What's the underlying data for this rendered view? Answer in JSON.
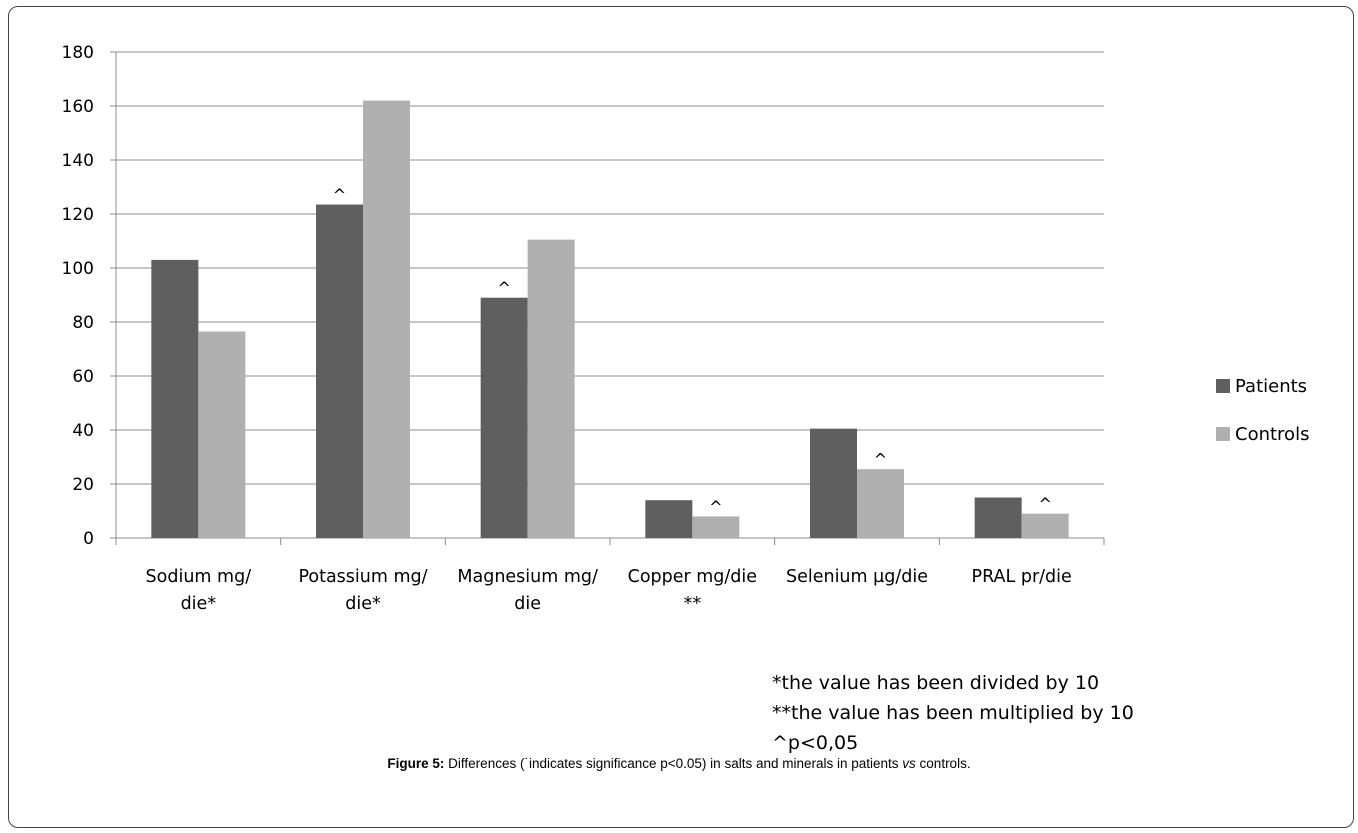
{
  "chart_data": {
    "type": "bar",
    "categories": [
      [
        "Sodium mg/",
        "die*"
      ],
      [
        "Potassium mg/",
        "die*"
      ],
      [
        "Magnesium mg/",
        "die"
      ],
      [
        "Copper mg/die",
        "**"
      ],
      [
        "Selenium µg/die"
      ],
      [
        "PRAL pr/die"
      ]
    ],
    "series": [
      {
        "name": "Patients",
        "color": "#5f5f5f",
        "values": [
          103,
          123.5,
          89,
          14,
          40.5,
          15
        ],
        "markers": [
          "",
          "^",
          "^",
          "",
          "",
          ""
        ]
      },
      {
        "name": "Controls",
        "color": "#b0b0b0",
        "values": [
          76.5,
          162,
          110.5,
          8,
          25.5,
          9
        ],
        "markers": [
          "",
          "",
          "",
          "^",
          "^",
          "^"
        ]
      }
    ],
    "ylim": [
      0,
      180
    ],
    "yticks": [
      "0",
      "20",
      "40",
      "60",
      "80",
      "100",
      "120",
      "140",
      "160",
      "180"
    ],
    "grid": true,
    "legend_position": "right"
  },
  "notes": [
    "*the value has been divided by 10",
    "**the value has been multiplied by 10",
    "^p<0,05"
  ],
  "caption": {
    "label": "Figure 5:",
    "text": " Differences (˙indicates significance p<0.05) in salts and minerals in patients ",
    "italic": "vs",
    "tail": " controls."
  }
}
